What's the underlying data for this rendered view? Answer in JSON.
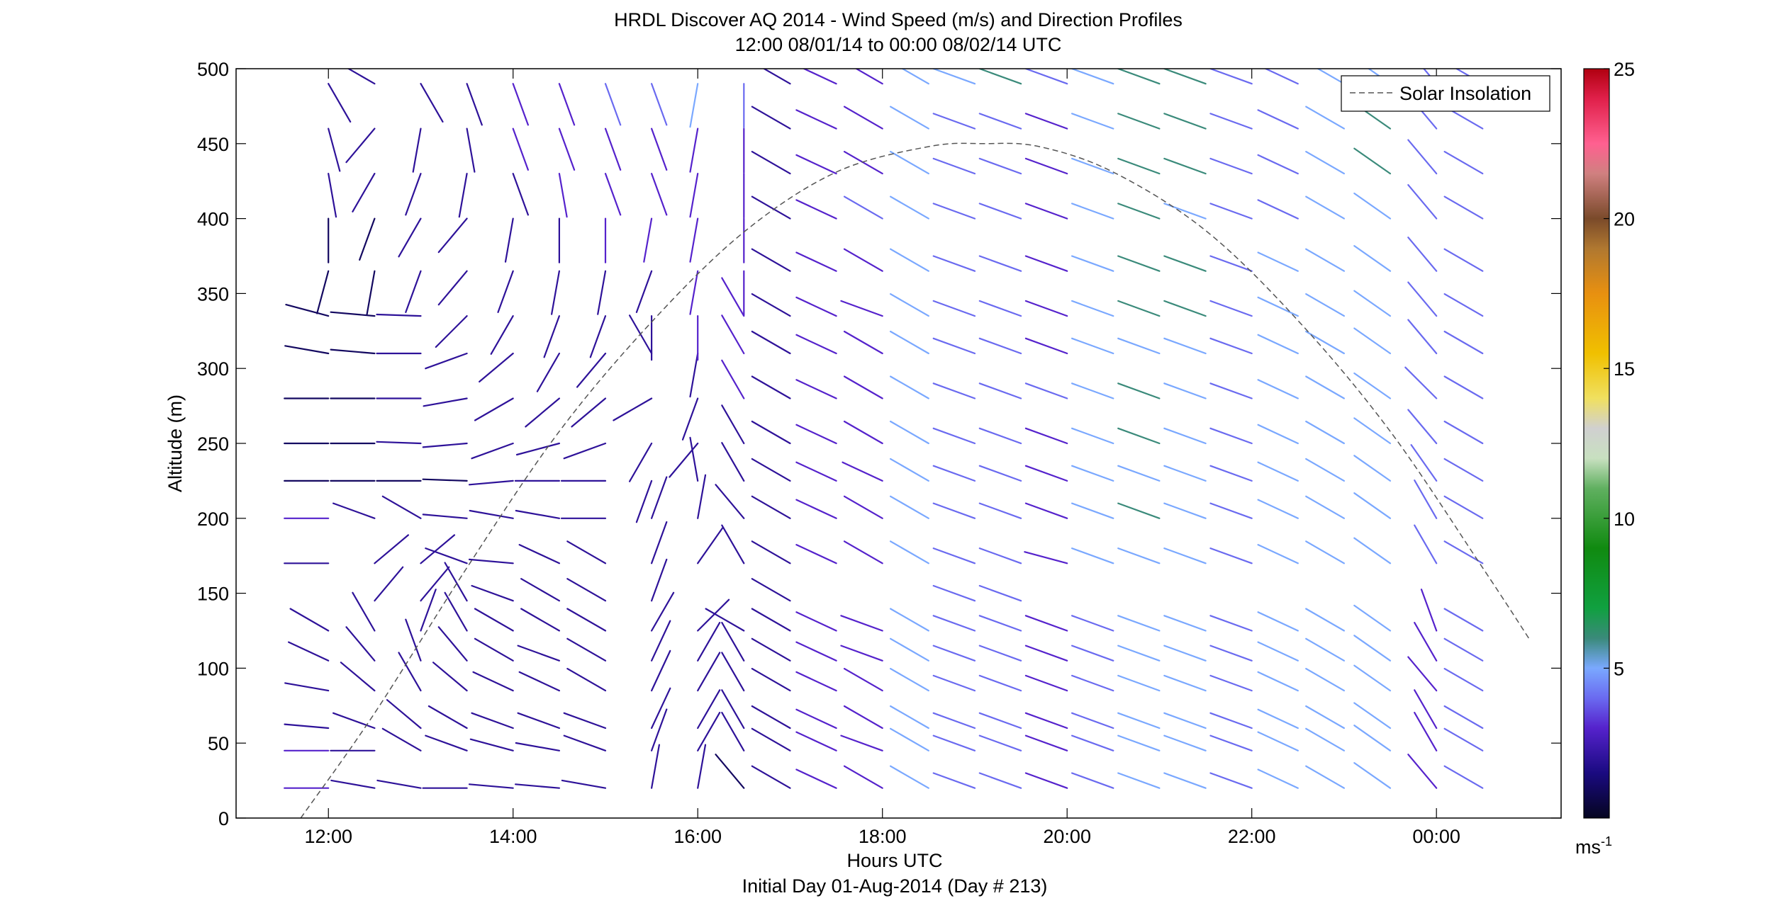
{
  "chart_data": {
    "type": "wind_barb_profile",
    "title": "HRDL Discover AQ 2014 - Wind Speed (m/s) and Direction Profiles",
    "subtitle": "12:00 08/01/14 to 00:00 08/02/14  UTC",
    "xlabel": "Hours UTC",
    "xlabel2": "Initial Day 01-Aug-2014 (Day # 213)",
    "ylabel": "Altitude (m)",
    "xlim": [
      11.0,
      25.35
    ],
    "ylim": [
      0,
      500
    ],
    "xticks": [
      {
        "value": 12,
        "label": "12:00"
      },
      {
        "value": 14,
        "label": "14:00"
      },
      {
        "value": 16,
        "label": "16:00"
      },
      {
        "value": 18,
        "label": "18:00"
      },
      {
        "value": 20,
        "label": "20:00"
      },
      {
        "value": 22,
        "label": "22:00"
      },
      {
        "value": 24,
        "label": "00:00"
      }
    ],
    "yticks": [
      0,
      50,
      100,
      150,
      200,
      250,
      300,
      350,
      400,
      450,
      500
    ],
    "legend": {
      "label": "Solar Insolation",
      "placement": "top-right",
      "style": "dashed",
      "color": "#555555"
    },
    "colorbar": {
      "min": 0,
      "max": 25,
      "ticks": [
        5,
        10,
        15,
        20,
        25
      ],
      "unit_label": "ms",
      "unit_exp": "-1",
      "stops": [
        {
          "v": 0,
          "c": "#050520"
        },
        {
          "v": 1.5,
          "c": "#1a0a80"
        },
        {
          "v": 3,
          "c": "#5522cc"
        },
        {
          "v": 4,
          "c": "#6a6af0"
        },
        {
          "v": 5,
          "c": "#7aa8ff"
        },
        {
          "v": 6,
          "c": "#3a8a7a"
        },
        {
          "v": 7,
          "c": "#10a040"
        },
        {
          "v": 9,
          "c": "#108a10"
        },
        {
          "v": 11,
          "c": "#60b060"
        },
        {
          "v": 12,
          "c": "#c8e0c0"
        },
        {
          "v": 13,
          "c": "#d0d0d0"
        },
        {
          "v": 14,
          "c": "#f0e060"
        },
        {
          "v": 15.5,
          "c": "#f0c000"
        },
        {
          "v": 17.5,
          "c": "#e89010"
        },
        {
          "v": 19,
          "c": "#b07830"
        },
        {
          "v": 20,
          "c": "#7a4a2a"
        },
        {
          "v": 21.5,
          "c": "#d08080"
        },
        {
          "v": 22.5,
          "c": "#ff6090"
        },
        {
          "v": 24,
          "c": "#e0204a"
        },
        {
          "v": 25,
          "c": "#b00010"
        }
      ]
    },
    "solar_insolation": {
      "x": [
        11.7,
        12.5,
        13.5,
        14.5,
        15.5,
        16.5,
        17.5,
        18.5,
        19.1,
        19.7,
        20.5,
        21.5,
        22.5,
        23.5,
        24.5,
        25.0
      ],
      "y": [
        0,
        70,
        167,
        258,
        331,
        391,
        431,
        448,
        450,
        448,
        431,
        392,
        332,
        258,
        167,
        120
      ]
    },
    "times": [
      12.0,
      12.5,
      13.0,
      13.5,
      14.0,
      14.5,
      15.0,
      15.5,
      16.0,
      16.5,
      17.0,
      17.5,
      18.0,
      18.5,
      19.0,
      19.5,
      20.0,
      20.5,
      21.0,
      21.5,
      22.0,
      22.5,
      23.0,
      23.5,
      24.0,
      24.5
    ],
    "altitudes": [
      20,
      45,
      60,
      85,
      105,
      125,
      145,
      170,
      200,
      225,
      250,
      280,
      310,
      335,
      365,
      400,
      430,
      460,
      490
    ],
    "wind_direction": {
      "t12.0": [
        270,
        270,
        275,
        280,
        295,
        300,
        null,
        270,
        270,
        270,
        270,
        270,
        280,
        285,
        195,
        180,
        170,
        165,
        150
      ],
      "t12.5": [
        280,
        270,
        290,
        310,
        320,
        330,
        40,
        50,
        290,
        270,
        270,
        270,
        275,
        275,
        190,
        200,
        210,
        220,
        300
      ],
      "t13.0": [
        280,
        300,
        310,
        330,
        340,
        20,
        40,
        50,
        300,
        270,
        272,
        270,
        270,
        272,
        200,
        210,
        200,
        190,
        150
      ],
      "t13.5": [
        270,
        290,
        300,
        310,
        320,
        330,
        330,
        290,
        275,
        272,
        265,
        260,
        250,
        225,
        220,
        220,
        190,
        170,
        160
      ],
      "t14.0": [
        275,
        285,
        290,
        295,
        300,
        300,
        290,
        275,
        280,
        265,
        250,
        240,
        230,
        210,
        200,
        190,
        160,
        160,
        160
      ],
      "t14.5": [
        275,
        280,
        290,
        295,
        290,
        300,
        300,
        295,
        280,
        270,
        255,
        230,
        210,
        200,
        190,
        180,
        170,
        160,
        160
      ],
      "t15.0": [
        280,
        290,
        290,
        300,
        300,
        300,
        300,
        300,
        270,
        270,
        250,
        230,
        220,
        200,
        190,
        180,
        160,
        160,
        160
      ],
      "t15.5": [
        10,
        20,
        25,
        25,
        25,
        30,
        20,
        20,
        20,
        200,
        210,
        240,
        330,
        180,
        200,
        190,
        160,
        160,
        160
      ],
      "t16.0": [
        10,
        30,
        30,
        30,
        30,
        45,
        null,
        35,
        10,
        350,
        220,
        200,
        190,
        180,
        190,
        190,
        190,
        190,
        190
      ],
      "t16.5": [
        320,
        330,
        330,
        330,
        330,
        300,
        null,
        330,
        320,
        330,
        330,
        330,
        330,
        330,
        180,
        180,
        180,
        180,
        180
      ],
      "t17.0": [
        300,
        300,
        300,
        300,
        300,
        300,
        300,
        300,
        300,
        300,
        300,
        300,
        300,
        300,
        300,
        300,
        300,
        300,
        300
      ],
      "t17.5": [
        295,
        295,
        295,
        295,
        295,
        295,
        null,
        295,
        295,
        295,
        295,
        295,
        295,
        295,
        295,
        295,
        295,
        295,
        295
      ],
      "t18.0": [
        300,
        290,
        300,
        300,
        290,
        290,
        null,
        300,
        300,
        295,
        300,
        300,
        300,
        290,
        300,
        300,
        300,
        300,
        300
      ],
      "t18.5": [
        300,
        300,
        300,
        300,
        300,
        300,
        null,
        300,
        300,
        300,
        300,
        300,
        300,
        300,
        300,
        300,
        300,
        300,
        300
      ],
      "t19.0": [
        290,
        290,
        290,
        290,
        290,
        290,
        290,
        290,
        290,
        290,
        290,
        290,
        290,
        290,
        290,
        290,
        290,
        290,
        290
      ],
      "t19.5": [
        290,
        290,
        290,
        290,
        290,
        290,
        290,
        290,
        290,
        290,
        290,
        290,
        290,
        290,
        290,
        290,
        290,
        290,
        290
      ],
      "t20.0": [
        290,
        290,
        290,
        290,
        290,
        290,
        null,
        285,
        290,
        290,
        290,
        290,
        290,
        290,
        290,
        290,
        290,
        290,
        290
      ],
      "t20.5": [
        290,
        290,
        290,
        290,
        290,
        290,
        null,
        290,
        290,
        290,
        290,
        290,
        290,
        290,
        290,
        290,
        290,
        290,
        290
      ],
      "t21.0": [
        290,
        290,
        290,
        290,
        290,
        290,
        null,
        290,
        290,
        290,
        290,
        290,
        290,
        290,
        290,
        290,
        290,
        290,
        290
      ],
      "t21.5": [
        290,
        290,
        290,
        290,
        290,
        290,
        null,
        290,
        290,
        290,
        290,
        290,
        290,
        290,
        290,
        290,
        290,
        290,
        290
      ],
      "t22.0": [
        290,
        290,
        290,
        290,
        290,
        290,
        null,
        290,
        290,
        290,
        290,
        290,
        290,
        290,
        290,
        290,
        290,
        290,
        290
      ],
      "t22.5": [
        295,
        295,
        295,
        295,
        295,
        295,
        null,
        295,
        295,
        295,
        295,
        295,
        295,
        295,
        295,
        295,
        295,
        295,
        295
      ],
      "t23.0": [
        300,
        300,
        300,
        300,
        300,
        300,
        null,
        300,
        300,
        300,
        300,
        300,
        300,
        300,
        300,
        300,
        300,
        300,
        300
      ],
      "t23.5": [
        305,
        305,
        305,
        305,
        305,
        305,
        null,
        305,
        305,
        305,
        305,
        305,
        305,
        305,
        305,
        305,
        305,
        305,
        305
      ],
      "t24.0": [
        320,
        330,
        330,
        320,
        330,
        340,
        null,
        330,
        330,
        325,
        320,
        315,
        320,
        320,
        320,
        320,
        320,
        320,
        320
      ],
      "t24.5": [
        300,
        300,
        300,
        300,
        300,
        300,
        null,
        300,
        300,
        300,
        300,
        300,
        300,
        300,
        300,
        300,
        300,
        300,
        300
      ]
    },
    "wind_speed": {
      "t12.0": [
        3,
        3,
        2,
        2,
        2,
        2,
        null,
        2,
        3,
        1,
        1,
        1,
        1,
        1,
        1,
        1,
        2,
        2,
        2
      ],
      "t12.5": [
        2,
        2,
        2,
        2,
        2,
        2,
        2,
        2,
        2,
        1,
        1,
        1,
        1,
        1,
        1,
        1,
        2,
        2,
        2
      ],
      "t13.0": [
        2,
        2,
        2,
        2,
        2,
        2,
        2,
        2,
        2,
        1,
        2,
        2,
        2,
        2,
        2,
        2,
        2,
        2,
        2
      ],
      "t13.5": [
        2,
        2,
        2,
        2,
        2,
        2,
        2,
        2,
        2,
        1,
        2,
        2,
        2,
        2,
        2,
        2,
        2,
        2,
        2
      ],
      "t14.0": [
        2,
        2,
        2,
        2,
        2,
        2,
        2,
        2,
        2,
        2,
        2,
        2,
        2,
        2,
        2,
        2,
        2,
        3,
        3
      ],
      "t14.5": [
        2,
        2,
        2,
        2,
        2,
        2,
        2,
        2,
        2,
        2,
        2,
        2,
        2,
        2,
        2,
        2,
        3,
        3,
        3
      ],
      "t15.0": [
        2,
        2,
        2,
        2,
        2,
        2,
        2,
        2,
        2,
        2,
        2,
        2,
        2,
        2,
        2,
        3,
        3,
        3,
        4
      ],
      "t15.5": [
        2,
        2,
        2,
        2,
        2,
        2,
        2,
        2,
        2,
        2,
        2,
        2,
        2,
        2,
        2,
        3,
        3,
        3,
        4
      ],
      "t16.0": [
        2,
        2,
        2,
        2,
        2,
        2,
        null,
        2,
        2,
        2,
        2,
        2,
        2,
        3,
        3,
        3,
        3,
        3,
        5
      ],
      "t16.5": [
        1,
        2,
        2,
        2,
        2,
        2,
        null,
        2,
        2,
        2,
        2,
        3,
        3,
        3,
        3,
        3,
        3,
        3,
        4
      ],
      "t17.0": [
        2,
        2,
        2,
        2,
        2,
        2,
        2,
        2,
        2,
        2,
        2,
        2,
        2,
        2,
        2,
        2,
        2,
        2,
        2
      ],
      "t17.5": [
        3,
        3,
        3,
        3,
        3,
        3,
        null,
        3,
        3,
        3,
        3,
        3,
        3,
        3,
        3,
        3,
        3,
        3,
        3
      ],
      "t18.0": [
        3,
        3,
        3,
        3,
        3,
        3,
        null,
        3,
        3,
        3,
        3,
        3,
        3,
        3,
        3,
        4,
        3,
        3,
        3
      ],
      "t18.5": [
        5,
        5,
        5,
        5,
        5,
        5,
        null,
        5,
        5,
        5,
        5,
        5,
        5,
        5,
        5,
        5,
        5,
        5,
        5
      ],
      "t19.0": [
        4,
        4,
        4,
        4,
        4,
        4,
        4,
        4,
        4,
        4,
        4,
        4,
        4,
        4,
        4,
        4,
        4,
        4,
        5
      ],
      "t19.5": [
        4,
        4,
        4,
        4,
        4,
        4,
        4,
        4,
        4,
        4,
        4,
        4,
        4,
        4,
        4,
        4,
        4,
        4,
        6
      ],
      "t20.0": [
        3,
        3,
        3,
        3,
        3,
        3,
        null,
        3,
        3,
        3,
        3,
        4,
        3,
        3,
        3,
        3,
        3,
        3,
        4
      ],
      "t20.5": [
        4,
        4,
        4,
        4,
        4,
        4,
        null,
        5,
        5,
        5,
        5,
        5,
        5,
        5,
        5,
        5,
        5,
        5,
        5
      ],
      "t21.0": [
        5,
        5,
        5,
        5,
        5,
        5,
        null,
        5,
        6,
        5,
        6,
        6,
        5,
        6,
        6,
        6,
        6,
        6,
        6
      ],
      "t21.5": [
        5,
        5,
        5,
        5,
        5,
        5,
        null,
        5,
        5,
        5,
        5,
        5,
        5,
        6,
        6,
        5,
        6,
        6,
        6
      ],
      "t22.0": [
        4,
        4,
        4,
        4,
        4,
        4,
        null,
        4,
        4,
        4,
        4,
        4,
        4,
        4,
        4,
        4,
        4,
        4,
        4
      ],
      "t22.5": [
        5,
        5,
        5,
        5,
        5,
        5,
        null,
        5,
        5,
        5,
        5,
        5,
        5,
        5,
        5,
        4,
        4,
        4,
        4
      ],
      "t23.0": [
        5,
        5,
        5,
        5,
        5,
        5,
        null,
        5,
        5,
        5,
        5,
        5,
        5,
        5,
        5,
        5,
        5,
        5,
        5
      ],
      "t23.5": [
        5,
        5,
        5,
        5,
        5,
        5,
        null,
        5,
        5,
        5,
        5,
        5,
        5,
        5,
        5,
        5,
        6,
        6,
        5
      ],
      "t24.0": [
        3,
        3,
        3,
        3,
        3,
        3,
        null,
        4,
        4,
        4,
        4,
        4,
        4,
        4,
        4,
        4,
        4,
        4,
        4
      ],
      "t24.5": [
        4,
        4,
        4,
        4,
        4,
        4,
        null,
        4,
        4,
        4,
        4,
        4,
        4,
        4,
        4,
        4,
        4,
        4,
        4
      ]
    }
  }
}
